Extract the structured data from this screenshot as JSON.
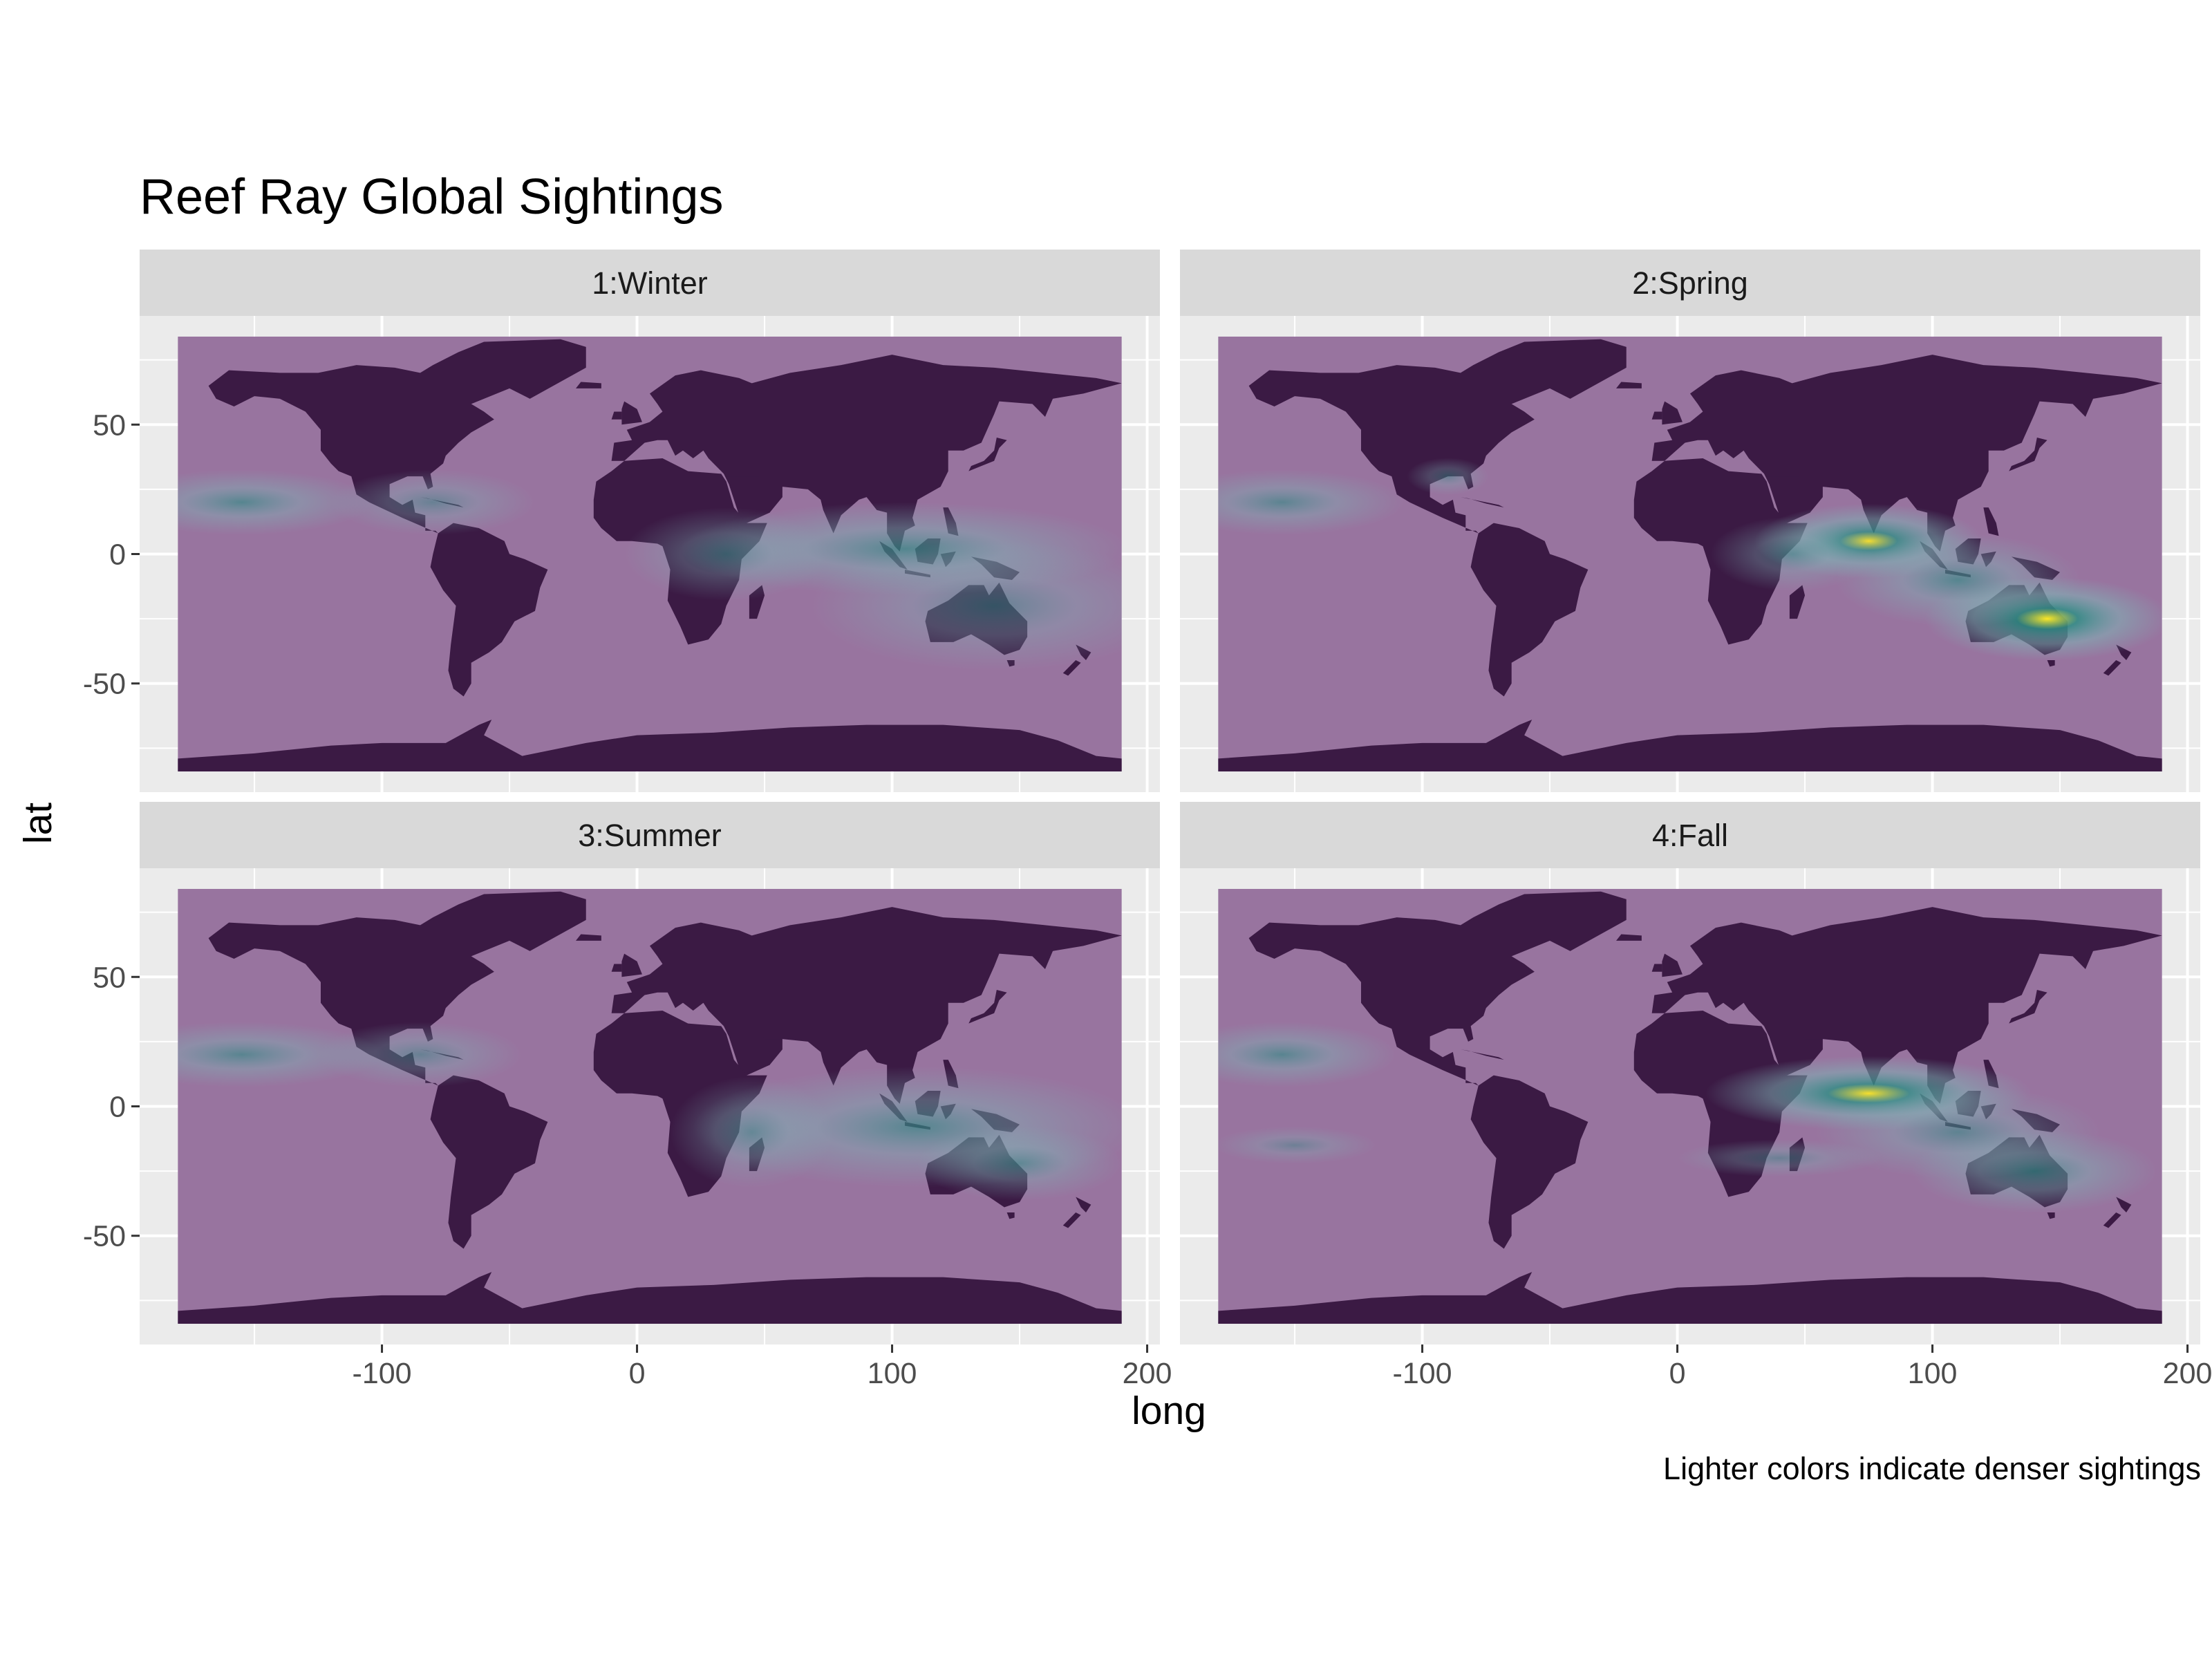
{
  "chart_data": {
    "type": "heatmap",
    "title": "Reef Ray Global Sightings",
    "xlabel": "long",
    "ylabel": "lat",
    "caption": "Lighter colors indicate denser sightings",
    "xlim": [
      -195,
      205
    ],
    "ylim": [
      -92,
      92
    ],
    "x_ticks": [
      -100,
      0,
      100,
      200
    ],
    "x_tick_labels": [
      "-100",
      "0",
      "100",
      "200"
    ],
    "y_ticks": [
      50,
      0,
      -50
    ],
    "y_tick_labels": [
      "50",
      "0",
      "-50"
    ],
    "map_extent": {
      "long": [
        -180,
        190
      ],
      "lat": [
        -84,
        84
      ]
    },
    "colors": {
      "ocean": "#98749f",
      "land": "#3b1a44",
      "panel_background": "#ebebeb",
      "strip_background": "#d9d9d9",
      "density_low": "#7fb3b5",
      "density_mid": "#2f8f86",
      "density_high": "#fde725"
    },
    "facets": [
      {
        "label": "1:Winter",
        "hotspots": [
          {
            "long": -155,
            "lat": 20,
            "spread_long": 32,
            "spread_lat": 7,
            "intensity": 0.55
          },
          {
            "long": -80,
            "lat": 20,
            "spread_long": 25,
            "spread_lat": 7,
            "intensity": 0.25
          },
          {
            "long": 105,
            "lat": 2,
            "spread_long": 55,
            "spread_lat": 10,
            "intensity": 0.6
          },
          {
            "long": 140,
            "lat": -20,
            "spread_long": 45,
            "spread_lat": 14,
            "intensity": 0.3
          },
          {
            "long": 35,
            "lat": 0,
            "spread_long": 25,
            "spread_lat": 10,
            "intensity": 0.25
          }
        ]
      },
      {
        "label": "2:Spring",
        "hotspots": [
          {
            "long": -155,
            "lat": 20,
            "spread_long": 30,
            "spread_lat": 7,
            "intensity": 0.45
          },
          {
            "long": -90,
            "lat": 30,
            "spread_long": 10,
            "spread_lat": 4,
            "intensity": 0.2
          },
          {
            "long": 75,
            "lat": 5,
            "spread_long": 28,
            "spread_lat": 8,
            "intensity": 0.85
          },
          {
            "long": 145,
            "lat": -25,
            "spread_long": 30,
            "spread_lat": 9,
            "intensity": 1.0
          },
          {
            "long": 110,
            "lat": -10,
            "spread_long": 30,
            "spread_lat": 10,
            "intensity": 0.55
          },
          {
            "long": 45,
            "lat": 0,
            "spread_long": 20,
            "spread_lat": 8,
            "intensity": 0.3
          }
        ]
      },
      {
        "label": "3:Summer",
        "hotspots": [
          {
            "long": -155,
            "lat": 20,
            "spread_long": 35,
            "spread_lat": 7,
            "intensity": 0.5
          },
          {
            "long": -85,
            "lat": 20,
            "spread_long": 25,
            "spread_lat": 7,
            "intensity": 0.25
          },
          {
            "long": 110,
            "lat": -8,
            "spread_long": 55,
            "spread_lat": 13,
            "intensity": 0.55
          },
          {
            "long": 150,
            "lat": -22,
            "spread_long": 25,
            "spread_lat": 8,
            "intensity": 0.35
          },
          {
            "long": 45,
            "lat": -10,
            "spread_long": 20,
            "spread_lat": 12,
            "intensity": 0.25
          }
        ]
      },
      {
        "label": "4:Fall",
        "hotspots": [
          {
            "long": -155,
            "lat": 20,
            "spread_long": 28,
            "spread_lat": 7,
            "intensity": 0.5
          },
          {
            "long": -150,
            "lat": -15,
            "spread_long": 20,
            "spread_lat": 4,
            "intensity": 0.15
          },
          {
            "long": 75,
            "lat": 5,
            "spread_long": 40,
            "spread_lat": 8,
            "intensity": 0.9
          },
          {
            "long": 140,
            "lat": -25,
            "spread_long": 30,
            "spread_lat": 9,
            "intensity": 0.6
          },
          {
            "long": 110,
            "lat": -10,
            "spread_long": 35,
            "spread_lat": 10,
            "intensity": 0.4
          },
          {
            "long": 40,
            "lat": -20,
            "spread_long": 25,
            "spread_lat": 4,
            "intensity": 0.2
          }
        ]
      }
    ],
    "grid": true,
    "legend": "none"
  }
}
